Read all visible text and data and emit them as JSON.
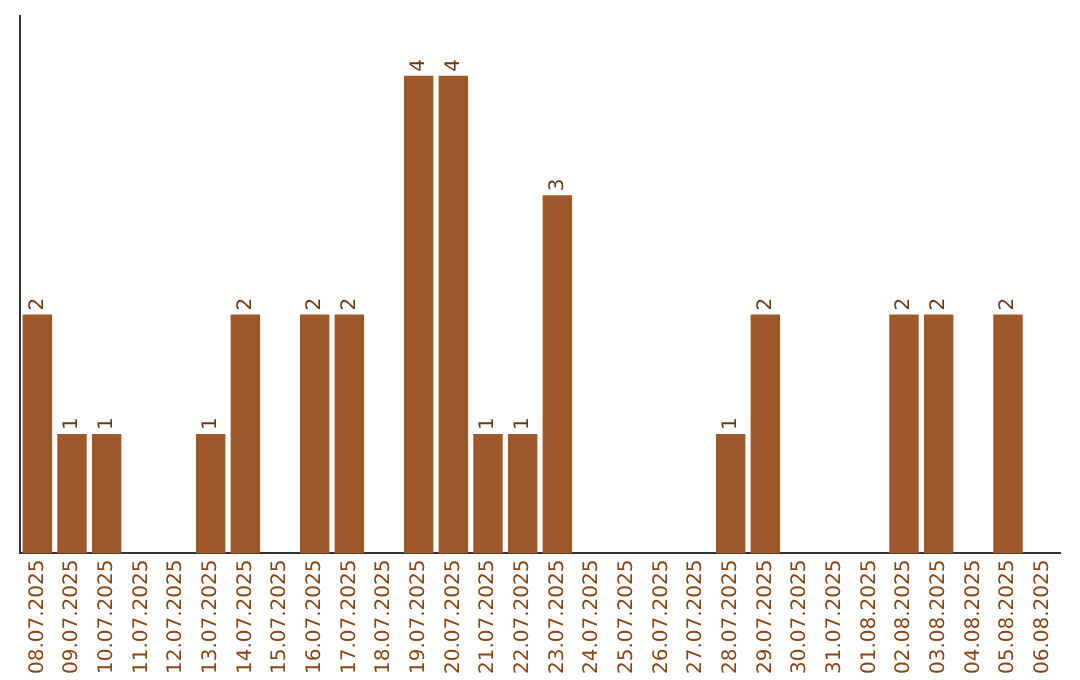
{
  "chart_data": {
    "type": "bar",
    "categories": [
      "08.07.2025",
      "09.07.2025",
      "10.07.2025",
      "11.07.2025",
      "12.07.2025",
      "13.07.2025",
      "14.07.2025",
      "15.07.2025",
      "16.07.2025",
      "17.07.2025",
      "18.07.2025",
      "19.07.2025",
      "20.07.2025",
      "21.07.2025",
      "22.07.2025",
      "23.07.2025",
      "24.07.2025",
      "25.07.2025",
      "26.07.2025",
      "27.07.2025",
      "28.07.2025",
      "29.07.2025",
      "30.07.2025",
      "31.07.2025",
      "01.08.2025",
      "02.08.2025",
      "03.08.2025",
      "04.08.2025",
      "05.08.2025",
      "06.08.2025"
    ],
    "values": [
      2,
      1,
      1,
      0,
      0,
      1,
      2,
      0,
      2,
      2,
      0,
      4,
      4,
      1,
      1,
      3,
      0,
      0,
      0,
      0,
      1,
      2,
      0,
      0,
      0,
      2,
      2,
      0,
      2,
      0
    ],
    "value_labels": [
      "2",
      "1",
      "1",
      null,
      null,
      "1",
      "2",
      null,
      "2",
      "2",
      null,
      "4",
      "4",
      "1",
      "1",
      "3",
      null,
      null,
      null,
      null,
      "1",
      "2",
      null,
      null,
      null,
      "2",
      "2",
      null,
      "2",
      null
    ],
    "color": "#a0592b",
    "grid": false,
    "legend": false,
    "tick_labels": "x"
  }
}
